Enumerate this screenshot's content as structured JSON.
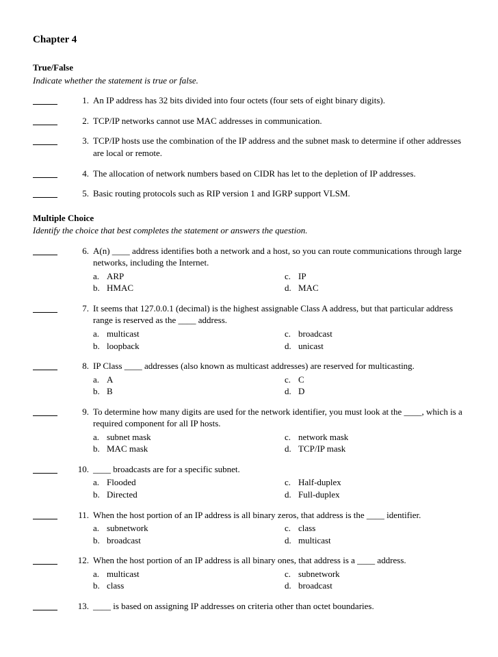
{
  "title": "Chapter 4",
  "sections": {
    "tf": {
      "heading": "True/False",
      "instruction": "Indicate whether the statement is true or false."
    },
    "mc": {
      "heading": "Multiple Choice",
      "instruction": "Identify the choice that best completes the statement or answers the question."
    }
  },
  "tf_questions": [
    {
      "n": "1.",
      "text": "An IP address has 32 bits divided into four octets (four sets of eight binary digits)."
    },
    {
      "n": "2.",
      "text": "TCP/IP networks cannot use MAC addresses in communication."
    },
    {
      "n": "3.",
      "text": "TCP/IP hosts use the combination of the IP address and the subnet mask to determine if other addresses are local or remote."
    },
    {
      "n": "4.",
      "text": "The allocation of network numbers based on CIDR has let to the depletion of IP addresses."
    },
    {
      "n": "5.",
      "text": "Basic routing protocols such as RIP version 1 and IGRP support VLSM."
    }
  ],
  "mc_questions": [
    {
      "n": "6.",
      "text": "A(n) ____ address identifies both a network and a host, so you can route communications through large networks, including the Internet.",
      "a": "ARP",
      "b": "HMAC",
      "c": "IP",
      "d": "MAC"
    },
    {
      "n": "7.",
      "text": "It seems that 127.0.0.1 (decimal) is the highest assignable Class A address, but that particular address range is reserved as the ____ address.",
      "a": "multicast",
      "b": "loopback",
      "c": "broadcast",
      "d": "unicast"
    },
    {
      "n": "8.",
      "text": "IP Class ____ addresses (also known as multicast addresses) are reserved for multicasting.",
      "a": "A",
      "b": "B",
      "c": "C",
      "d": "D"
    },
    {
      "n": "9.",
      "text": "To determine how many digits are used for the network identifier, you must look at the ____, which is a required component for all IP hosts.",
      "a": "subnet mask",
      "b": "MAC mask",
      "c": "network mask",
      "d": "TCP/IP mask"
    },
    {
      "n": "10.",
      "text": "____ broadcasts are for a specific subnet.",
      "a": "Flooded",
      "b": "Directed",
      "c": "Half-duplex",
      "d": "Full-duplex"
    },
    {
      "n": "11.",
      "text": "When the host portion of an IP address is all binary zeros, that address is the ____ identifier.",
      "a": "subnetwork",
      "b": "broadcast",
      "c": "class",
      "d": "multicast"
    },
    {
      "n": "12.",
      "text": "When the host portion of an IP address is all binary ones, that address is a ____ address.",
      "a": "multicast",
      "b": "class",
      "c": "subnetwork",
      "d": "broadcast"
    },
    {
      "n": "13.",
      "text": "____ is based on assigning IP addresses on criteria other than octet boundaries.",
      "a": "",
      "b": "",
      "c": "",
      "d": ""
    }
  ],
  "letters": {
    "a": "a.",
    "b": "b.",
    "c": "c.",
    "d": "d."
  }
}
